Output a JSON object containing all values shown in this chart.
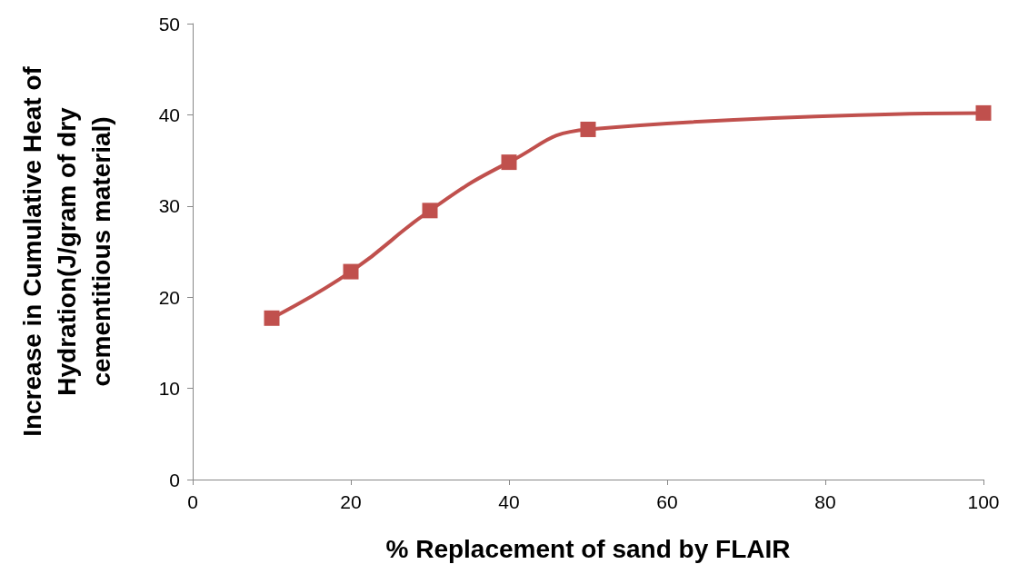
{
  "chart_data": {
    "type": "line",
    "xlabel": "% Replacement of sand by FLAIR",
    "ylabel": "Increase in Cumulative Heat of\nHydration(J/gram of dry\ncementitious material)",
    "x": [
      10,
      20,
      30,
      40,
      50,
      100
    ],
    "series": [
      {
        "color": "#c0504d",
        "values": [
          17.7,
          22.8,
          29.5,
          34.8,
          38.4,
          40.2
        ]
      }
    ],
    "xlim": [
      0,
      100
    ],
    "xticks": [
      0,
      20,
      40,
      60,
      80,
      100
    ],
    "ylim": [
      0,
      50
    ],
    "yticks": [
      0,
      10,
      20,
      30,
      40,
      50
    ],
    "grid": false,
    "marker": "square",
    "line_style": "solid"
  }
}
